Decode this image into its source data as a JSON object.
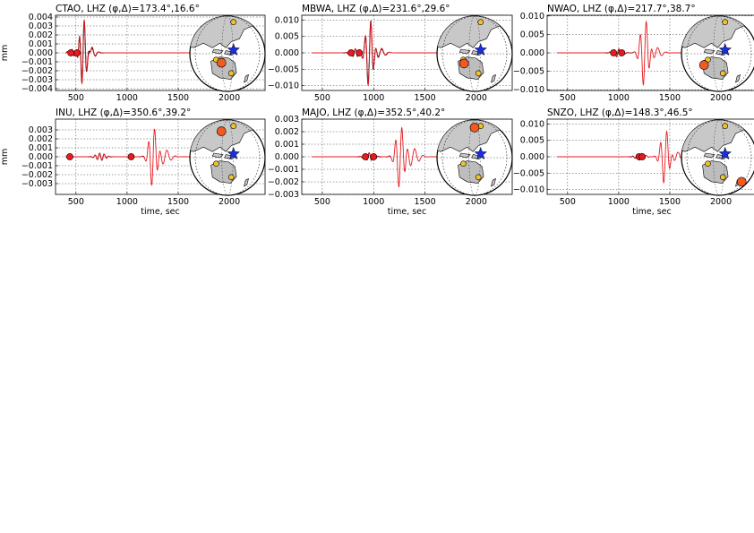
{
  "figure": {
    "colors": {
      "observed": "#000000",
      "synthetic": "#e8191f",
      "marker": "#e8191f",
      "station": "#f25a22",
      "event": "#1a2fe0",
      "land": "#c8c8c8",
      "australia": "#bdbdbd",
      "ocean": "#ffffff",
      "other_station": "#f2c12e"
    },
    "icons": {
      "station": "circle-marker",
      "event": "star-marker"
    }
  },
  "chart_data": [
    {
      "type": "line",
      "station": "CTAO",
      "channel": "LHZ",
      "title_prefix": "CTAO, LHZ",
      "title_math": "(φ,Δ)=173.4°,16.6°",
      "azimuth": 173.4,
      "distance": 16.6,
      "xlabel": "",
      "ylabel": "mm",
      "xlim": [
        300,
        2350
      ],
      "ylim": [
        -0.0042,
        0.0042
      ],
      "xticks": [
        500,
        1000,
        1500,
        2000
      ],
      "xtick_labels": [
        "500",
        "1000",
        "1500",
        "2000"
      ],
      "yticks": [
        0.004,
        0.003,
        0.002,
        0.001,
        0.0,
        -0.001,
        -0.002,
        -0.003,
        -0.004
      ],
      "ytick_labels": [
        "0.004",
        "0.003",
        "0.002",
        "0.001",
        "0.000",
        "−0.001",
        "−0.002",
        "−0.003",
        "−0.004"
      ],
      "grid": true,
      "window_markers_x": [
        450,
        510
      ],
      "wave_packets": [
        {
          "center": 570,
          "amp": 0.0036,
          "period": 48,
          "width": 45
        },
        {
          "center": 640,
          "amp": 0.0008,
          "period": 70,
          "width": 60
        }
      ],
      "observed_end": 1250,
      "synthetic_end": 2000,
      "map": {
        "station": [
          0.42,
          0.62
        ],
        "event": [
          0.58,
          0.45
        ]
      }
    },
    {
      "type": "line",
      "station": "MBWA",
      "channel": "LHZ",
      "title_prefix": "MBWA, LHZ",
      "title_math": "(φ,Δ)=231.6°,29.6°",
      "azimuth": 231.6,
      "distance": 29.6,
      "xlabel": "",
      "ylabel": "",
      "xlim": [
        300,
        2350
      ],
      "ylim": [
        -0.0115,
        0.0115
      ],
      "xticks": [
        500,
        1000,
        1500,
        2000
      ],
      "xtick_labels": [
        "500",
        "1000",
        "1500",
        "2000"
      ],
      "yticks": [
        0.01,
        0.005,
        0.0,
        -0.005,
        -0.01
      ],
      "ytick_labels": [
        "0.010",
        "0.005",
        "0.000",
        "−0.005",
        "−0.010"
      ],
      "grid": true,
      "window_markers_x": [
        780,
        860
      ],
      "wave_packets": [
        {
          "center": 960,
          "amp": 0.0105,
          "period": 55,
          "width": 48
        },
        {
          "center": 1060,
          "amp": 0.0015,
          "period": 80,
          "width": 70
        }
      ],
      "observed_end": 1150,
      "synthetic_end": 2000,
      "map": {
        "station": [
          0.36,
          0.63
        ],
        "event": [
          0.58,
          0.45
        ]
      }
    },
    {
      "type": "line",
      "station": "NWAO",
      "channel": "LHZ",
      "title_prefix": "NWAO, LHZ",
      "title_math": "(φ,Δ)=217.7°,38.7°",
      "azimuth": 217.7,
      "distance": 38.7,
      "xlabel": "",
      "ylabel": "",
      "xlim": [
        300,
        2350
      ],
      "ylim": [
        -0.0102,
        0.0102
      ],
      "xticks": [
        500,
        1000,
        1500,
        2000
      ],
      "xtick_labels": [
        "500",
        "1000",
        "1500",
        "2000"
      ],
      "yticks": [
        0.01,
        0.005,
        0.0,
        -0.005,
        -0.01
      ],
      "ytick_labels": [
        "0.010",
        "0.005",
        "0.000",
        "−0.005",
        "−0.010"
      ],
      "grid": true,
      "window_markers_x": [
        950,
        1030
      ],
      "wave_packets": [
        {
          "center": 1255,
          "amp": 0.0092,
          "period": 60,
          "width": 55
        },
        {
          "center": 1360,
          "amp": 0.0015,
          "period": 85,
          "width": 75
        }
      ],
      "observed_end": 1150,
      "synthetic_end": 2000,
      "map": {
        "station": [
          0.3,
          0.65
        ],
        "event": [
          0.58,
          0.45
        ]
      }
    },
    {
      "type": "line",
      "station": "INU",
      "channel": "LHZ",
      "title_prefix": "INU, LHZ",
      "title_math": "(φ,Δ)=350.6°,39.2°",
      "azimuth": 350.6,
      "distance": 39.2,
      "xlabel": "time, sec",
      "ylabel": "mm",
      "xlim": [
        300,
        2350
      ],
      "ylim": [
        -0.0042,
        0.0042
      ],
      "xticks": [
        500,
        1000,
        1500,
        2000
      ],
      "xtick_labels": [
        "500",
        "1000",
        "1500",
        "2000"
      ],
      "yticks": [
        0.003,
        0.002,
        0.001,
        0.0,
        -0.001,
        -0.002,
        -0.003
      ],
      "ytick_labels": [
        "0.003",
        "0.002",
        "0.001",
        "0.000",
        "−0.001",
        "−0.002",
        "−0.003"
      ],
      "grid": true,
      "window_markers_x": [
        440,
        1040
      ],
      "wave_packets": [
        {
          "center": 1255,
          "amp": 0.0034,
          "period": 60,
          "width": 52
        },
        {
          "center": 1370,
          "amp": 0.0008,
          "period": 85,
          "width": 70
        }
      ],
      "observed_end": 1170,
      "synthetic_end": 2000,
      "map": {
        "station": [
          0.42,
          0.15
        ],
        "event": [
          0.58,
          0.45
        ]
      }
    },
    {
      "type": "line",
      "station": "MAJO",
      "channel": "LHZ",
      "title_prefix": "MAJO, LHZ",
      "title_math": "(φ,Δ)=352.5°,40.2°",
      "azimuth": 352.5,
      "distance": 40.2,
      "xlabel": "time, sec",
      "ylabel": "",
      "xlim": [
        300,
        2350
      ],
      "ylim": [
        -0.003,
        0.003
      ],
      "xticks": [
        500,
        1000,
        1500,
        2000
      ],
      "xtick_labels": [
        "500",
        "1000",
        "1500",
        "2000"
      ],
      "yticks": [
        0.003,
        0.002,
        0.001,
        0.0,
        -0.001,
        -0.002,
        -0.003
      ],
      "ytick_labels": [
        "0.003",
        "0.002",
        "0.001",
        "0.000",
        "−0.001",
        "−0.002",
        "−0.003"
      ],
      "grid": true,
      "window_markers_x": [
        920,
        1000
      ],
      "wave_packets": [
        {
          "center": 1260,
          "amp": 0.0026,
          "period": 62,
          "width": 55
        },
        {
          "center": 1380,
          "amp": 0.0007,
          "period": 85,
          "width": 75
        }
      ],
      "observed_end": 1170,
      "synthetic_end": 2000,
      "map": {
        "station": [
          0.5,
          0.1
        ],
        "event": [
          0.58,
          0.45
        ]
      }
    },
    {
      "type": "line",
      "station": "SNZO",
      "channel": "LHZ",
      "title_prefix": "SNZO, LHZ",
      "title_math": "(φ,Δ)=148.3°,46.5°",
      "azimuth": 148.3,
      "distance": 46.5,
      "xlabel": "time, sec",
      "ylabel": "",
      "xlim": [
        300,
        2350
      ],
      "ylim": [
        -0.0115,
        0.0115
      ],
      "xticks": [
        500,
        1000,
        1500,
        2000
      ],
      "xtick_labels": [
        "500",
        "1000",
        "1500",
        "2000"
      ],
      "yticks": [
        0.01,
        0.005,
        0.0,
        -0.005,
        -0.01
      ],
      "ytick_labels": [
        "0.010",
        "0.005",
        "0.000",
        "−0.005",
        "−0.010"
      ],
      "grid": true,
      "window_markers_x": [
        1200,
        1230
      ],
      "wave_packets": [
        {
          "center": 1455,
          "amp": 0.0085,
          "period": 62,
          "width": 55
        },
        {
          "center": 1560,
          "amp": 0.0015,
          "period": 85,
          "width": 75
        }
      ],
      "observed_end": 1230,
      "synthetic_end": 2000,
      "map": {
        "station": [
          0.8,
          0.82
        ],
        "event": [
          0.58,
          0.45
        ]
      }
    }
  ]
}
